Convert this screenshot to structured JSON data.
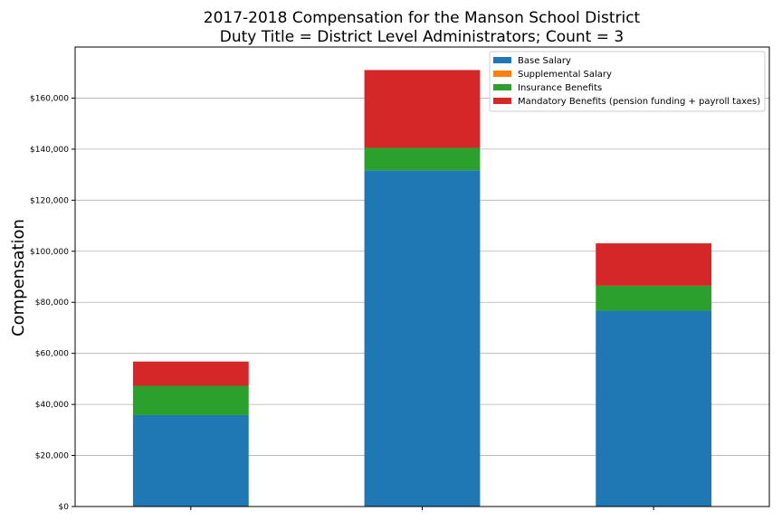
{
  "chart_data": {
    "type": "bar",
    "stacked": true,
    "title": "2017-2018 Compensation for the Manson School District",
    "subtitle": "Duty Title = District Level Administrators; Count = 3",
    "xlabel": "",
    "ylabel": "Compensation",
    "ylim": [
      0,
      180000
    ],
    "yticks": [
      0,
      20000,
      40000,
      60000,
      80000,
      100000,
      120000,
      140000,
      160000
    ],
    "ytick_labels": [
      "$0",
      "$20,000",
      "$40,000",
      "$60,000",
      "$80,000",
      "$100,000",
      "$120,000",
      "$140,000",
      "$160,000"
    ],
    "categories": [
      "",
      "",
      ""
    ],
    "grid": "horizontal",
    "legend_position": "top-right",
    "series": [
      {
        "name": "Base Salary",
        "color": "#1f77b4",
        "values": [
          35800,
          131700,
          76700
        ]
      },
      {
        "name": "Supplemental Salary",
        "color": "#ff7f0e",
        "values": [
          0,
          0,
          0
        ]
      },
      {
        "name": "Insurance Benefits",
        "color": "#2ca02c",
        "values": [
          11500,
          8800,
          9800
        ]
      },
      {
        "name": "Mandatory Benefits (pension funding + payroll taxes)",
        "color": "#d62728",
        "values": [
          9500,
          30500,
          16600
        ]
      }
    ]
  }
}
